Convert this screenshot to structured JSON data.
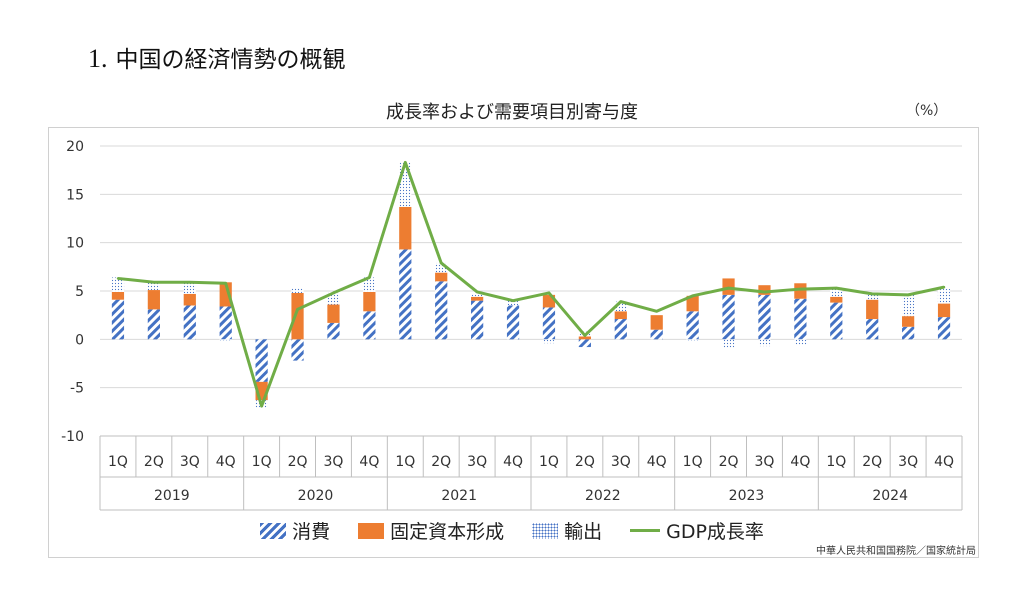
{
  "page": {
    "heading_number": "1.",
    "heading_text": "中国の経済情勢の概観"
  },
  "chart_data": {
    "type": "bar",
    "title": "成長率および需要項目別寄与度",
    "unit_label": "（%）",
    "quarters": [
      "1Q",
      "2Q",
      "3Q",
      "4Q",
      "1Q",
      "2Q",
      "3Q",
      "4Q",
      "1Q",
      "2Q",
      "3Q",
      "4Q",
      "1Q",
      "2Q",
      "3Q",
      "4Q",
      "1Q",
      "2Q",
      "3Q",
      "4Q",
      "1Q",
      "2Q",
      "3Q",
      "4Q"
    ],
    "years": [
      "2019",
      "2020",
      "2021",
      "2022",
      "2023",
      "2024"
    ],
    "ylim": [
      -10,
      20
    ],
    "yticks": [
      "-10",
      "-5",
      "0",
      "5",
      "10",
      "15",
      "20"
    ],
    "series": [
      {
        "name": "消費",
        "values": [
          4.1,
          3.1,
          3.5,
          3.4,
          -4.4,
          -2.2,
          1.7,
          2.9,
          9.3,
          6.0,
          4.0,
          3.5,
          3.3,
          -0.8,
          2.1,
          1.0,
          2.9,
          4.6,
          4.6,
          4.2,
          3.8,
          2.1,
          1.3,
          2.3
        ],
        "color": "#4472c4"
      },
      {
        "name": "固定資本形成",
        "values": [
          0.8,
          2.0,
          1.2,
          2.5,
          -1.9,
          4.8,
          1.9,
          2.0,
          4.4,
          0.9,
          0.4,
          0.0,
          1.3,
          0.3,
          0.8,
          1.5,
          1.6,
          1.7,
          1.0,
          1.6,
          0.6,
          2.0,
          1.1,
          1.4
        ],
        "color": "#ed7d31"
      },
      {
        "name": "輸出",
        "values": [
          1.5,
          0.8,
          1.1,
          -0.1,
          -0.8,
          0.5,
          1.2,
          1.5,
          4.7,
          1.0,
          0.3,
          0.6,
          -0.4,
          0.5,
          1.0,
          0.0,
          -0.1,
          -0.9,
          -0.7,
          -0.6,
          1.0,
          0.6,
          2.2,
          1.5
        ],
        "color": "#4472c4"
      },
      {
        "name": "GDP成長率",
        "values": [
          6.3,
          5.9,
          5.9,
          5.8,
          -6.9,
          3.1,
          4.8,
          6.4,
          18.3,
          7.9,
          4.9,
          4.0,
          4.8,
          0.4,
          3.9,
          2.9,
          4.5,
          5.3,
          4.9,
          5.2,
          5.3,
          4.7,
          4.6,
          5.4
        ],
        "color": "#70ad47"
      }
    ]
  },
  "legend": {
    "consumption": "消費",
    "investment": "固定資本形成",
    "exports": "輸出",
    "gdp": "GDP成長率"
  },
  "source": "中華人民共和国国務院／国家統計局"
}
